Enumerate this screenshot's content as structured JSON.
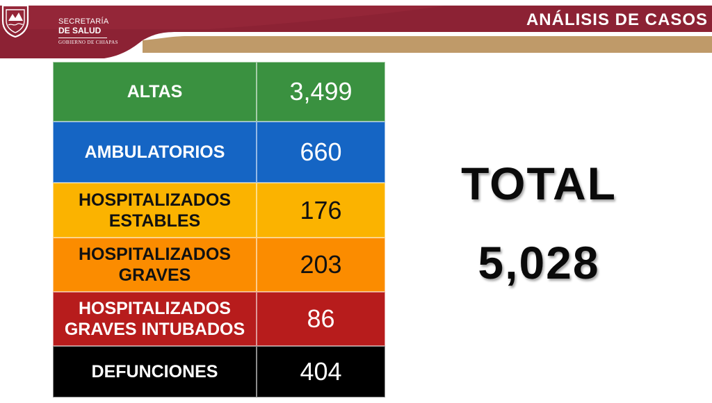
{
  "header": {
    "brand_line1": "SECRETARÍA",
    "brand_line2": "DE SALUD",
    "brand_line3": "GOBIERNO DE CHIAPAS",
    "title": "ANÁLISIS DE CASOS",
    "colors": {
      "maroon": "#8c2234",
      "gold": "#bf9a69"
    }
  },
  "table": {
    "rows": [
      {
        "label_lines": [
          "ALTAS"
        ],
        "value": "3,499",
        "bg": "#3a9140",
        "text": "#ffffff"
      },
      {
        "label_lines": [
          "AMBULATORIOS"
        ],
        "value": "660",
        "bg": "#1565c4",
        "text": "#ffffff"
      },
      {
        "label_lines": [
          "HOSPITALIZADOS",
          "ESTABLES"
        ],
        "value": "176",
        "bg": "#fbb300",
        "text": "#111111"
      },
      {
        "label_lines": [
          "HOSPITALIZADOS",
          "GRAVES"
        ],
        "value": "203",
        "bg": "#fb8c00",
        "text": "#111111"
      },
      {
        "label_lines": [
          "HOSPITALIZADOS",
          "GRAVES INTUBADOS"
        ],
        "value": "86",
        "bg": "#b71c1c",
        "text": "#ffffff"
      },
      {
        "label_lines": [
          "DEFUNCIONES"
        ],
        "value": "404",
        "bg": "#000000",
        "text": "#ffffff"
      }
    ]
  },
  "total": {
    "label": "TOTAL",
    "value": "5,028"
  }
}
